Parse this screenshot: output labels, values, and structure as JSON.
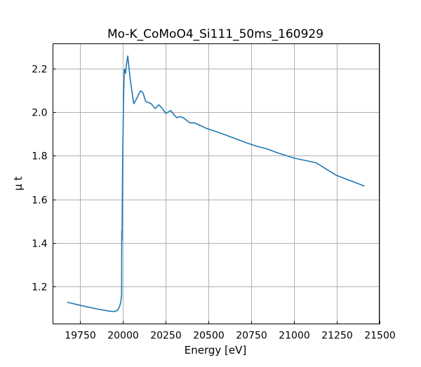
{
  "chart_data": {
    "type": "line",
    "title": "Mo-K_CoMoO4_Si111_50ms_160929",
    "xlabel": "Energy [eV]",
    "ylabel": "μ t",
    "xlim": [
      19593,
      21500
    ],
    "ylim": [
      1.026,
      2.316
    ],
    "grid": true,
    "xticks": [
      19750,
      20000,
      20250,
      20500,
      20750,
      21000,
      21250,
      21500
    ],
    "xtick_labels": [
      "19750",
      "20000",
      "20250",
      "20500",
      "20750",
      "21000",
      "21250",
      "21500"
    ],
    "yticks": [
      1.2,
      1.4,
      1.6,
      1.8,
      2.0,
      2.2
    ],
    "ytick_labels": [
      "1.2",
      "1.4",
      "1.6",
      "1.8",
      "2.0",
      "2.2"
    ],
    "series": [
      {
        "name": "mu_t",
        "color": "#1f77b4",
        "x": [
          19676,
          19750,
          19850,
          19920,
          19949,
          19970,
          19983,
          19990,
          19994,
          19995,
          19996,
          19997,
          20000,
          20005,
          20010,
          20017,
          20022,
          20030,
          20045,
          20065,
          20080,
          20095,
          20106,
          20119,
          20135,
          20153,
          20167,
          20190,
          20212,
          20230,
          20253,
          20281,
          20300,
          20315,
          20338,
          20359,
          20393,
          20420,
          20488,
          20557,
          20598,
          20650,
          20721,
          20780,
          20844,
          20900,
          21000,
          21131,
          21250,
          21414
        ],
        "y": [
          1.126,
          1.112,
          1.095,
          1.085,
          1.083,
          1.088,
          1.107,
          1.13,
          1.161,
          1.455,
          1.41,
          1.45,
          1.75,
          2.05,
          2.2,
          2.18,
          2.22,
          2.26,
          2.15,
          2.04,
          2.06,
          2.085,
          2.1,
          2.09,
          2.05,
          2.045,
          2.04,
          2.018,
          2.035,
          2.02,
          1.995,
          2.009,
          1.99,
          1.976,
          1.981,
          1.973,
          1.952,
          1.952,
          1.927,
          1.909,
          1.897,
          1.882,
          1.861,
          1.845,
          1.832,
          1.815,
          1.79,
          1.768,
          1.71,
          1.661
        ]
      }
    ]
  }
}
